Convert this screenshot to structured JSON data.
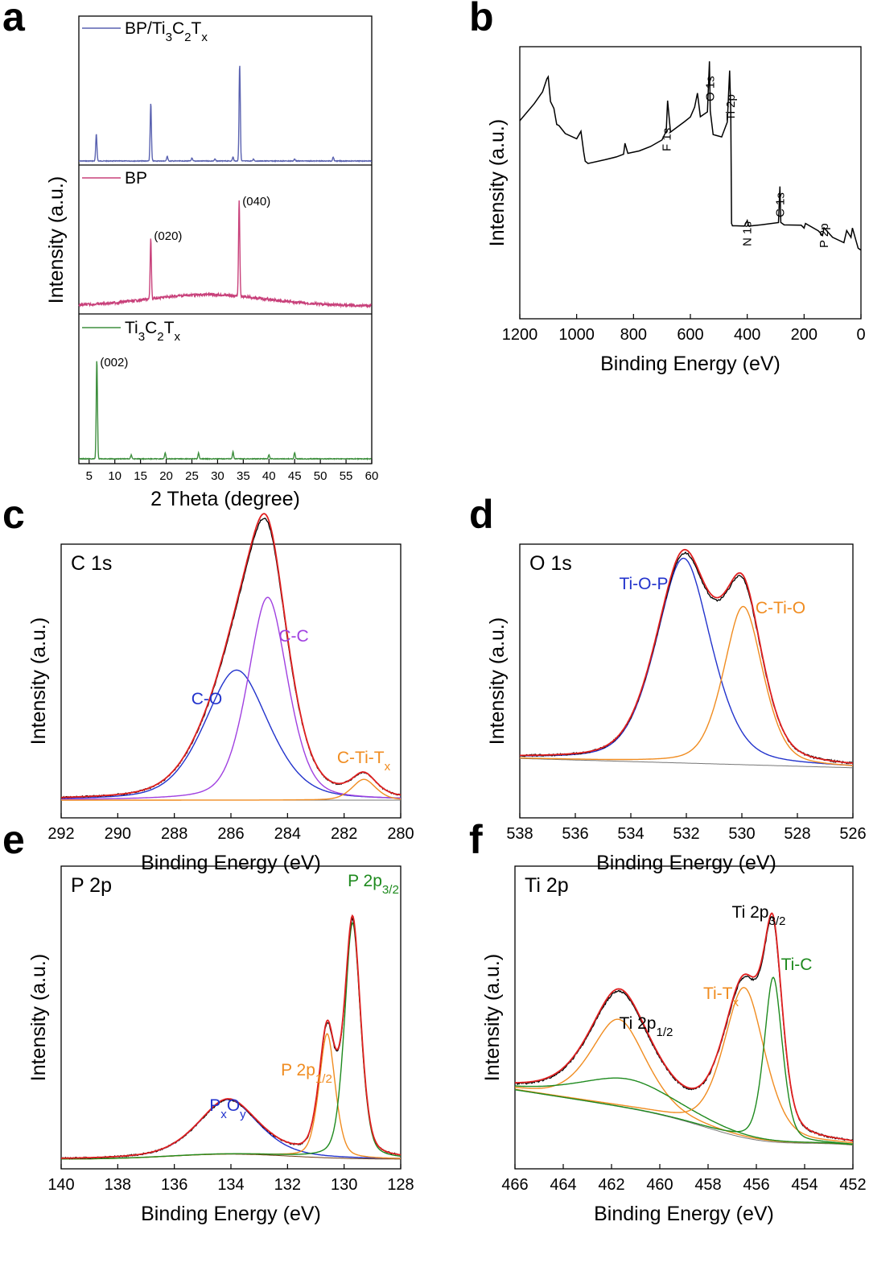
{
  "chart_data": [
    {
      "panel": "a",
      "type": "line",
      "xlabel": "2 Theta (degree)",
      "ylabel": "Intensity (a.u.)",
      "xlim": [
        3,
        60
      ],
      "xticks": [
        5,
        10,
        15,
        20,
        25,
        30,
        35,
        40,
        45,
        50,
        55,
        60
      ],
      "series": [
        {
          "name": "BP/Ti3C2Tx",
          "legend": {
            "main": "BP/Ti",
            "parts": [
              [
                "3",
                "sub"
              ],
              [
                "C",
                ""
              ],
              [
                "2",
                "sub"
              ],
              [
                "T",
                ""
              ],
              [
                "x",
                "sub"
              ]
            ]
          },
          "color": "#5a62b0",
          "peaks": [
            [
              6.4,
              0.28
            ],
            [
              17.0,
              0.6
            ],
            [
              20.2,
              0.05
            ],
            [
              25.0,
              0.03
            ],
            [
              29.5,
              0.02
            ],
            [
              33.0,
              0.04
            ],
            [
              34.3,
              1.0
            ],
            [
              37.0,
              0.02
            ],
            [
              45.0,
              0.02
            ],
            [
              52.5,
              0.04
            ]
          ],
          "baseline": "flat"
        },
        {
          "name": "BP",
          "legend": {
            "main": "BP",
            "parts": []
          },
          "color": "#c8407a",
          "peaks": [
            [
              17.0,
              0.62
            ],
            [
              34.2,
              1.0
            ]
          ],
          "baseline": "hump",
          "annotations": [
            {
              "text": "(020)",
              "x": 17.0
            },
            {
              "text": "(040)",
              "x": 34.2
            }
          ]
        },
        {
          "name": "Ti3C2Tx",
          "legend": {
            "main": "Ti",
            "parts": [
              [
                "3",
                "sub"
              ],
              [
                "C",
                ""
              ],
              [
                "2",
                "sub"
              ],
              [
                "T",
                ""
              ],
              [
                "x",
                "sub"
              ]
            ]
          },
          "color": "#3e8f3e",
          "peaks": [
            [
              6.5,
              1.0
            ],
            [
              13.2,
              0.04
            ],
            [
              19.8,
              0.06
            ],
            [
              26.3,
              0.06
            ],
            [
              33.0,
              0.07
            ],
            [
              40.0,
              0.04
            ],
            [
              45.0,
              0.06
            ]
          ],
          "baseline": "flat",
          "annotations": [
            {
              "text": "(002)",
              "x": 6.5
            }
          ]
        }
      ]
    },
    {
      "panel": "b",
      "type": "line",
      "xlabel": "Binding Energy (eV)",
      "ylabel": "Intensity (a.u.)",
      "xlim": [
        1200,
        0
      ],
      "xticks": [
        1200,
        1000,
        800,
        600,
        400,
        200,
        0
      ],
      "series": [
        {
          "name": "survey",
          "color": "#000000",
          "x": [
            1200,
            1150,
            1120,
            1105,
            1100,
            1092,
            1080,
            1070,
            1062,
            1040,
            1000,
            985,
            975,
            970,
            960,
            900,
            860,
            835,
            830,
            820,
            780,
            740,
            700,
            685,
            680,
            670,
            620,
            600,
            585,
            575,
            565,
            540,
            533,
            530,
            520,
            490,
            470,
            462,
            458,
            455,
            452,
            440,
            410,
            400,
            395,
            350,
            290,
            285,
            282,
            270,
            210,
            200,
            195,
            150,
            135,
            130,
            100,
            60,
            50,
            35,
            30,
            10,
            0
          ],
          "y": [
            0.78,
            0.85,
            0.9,
            0.95,
            0.96,
            0.86,
            0.83,
            0.77,
            0.76,
            0.73,
            0.71,
            0.74,
            0.66,
            0.62,
            0.61,
            0.63,
            0.64,
            0.65,
            0.69,
            0.65,
            0.66,
            0.68,
            0.71,
            0.74,
            0.86,
            0.74,
            0.78,
            0.8,
            0.84,
            0.89,
            0.8,
            0.82,
            1.02,
            0.82,
            0.73,
            0.72,
            0.78,
            0.98,
            0.82,
            0.38,
            0.37,
            0.37,
            0.37,
            0.39,
            0.37,
            0.37,
            0.38,
            0.52,
            0.38,
            0.37,
            0.37,
            0.36,
            0.38,
            0.35,
            0.33,
            0.36,
            0.32,
            0.3,
            0.35,
            0.32,
            0.36,
            0.28,
            0.27
          ]
        }
      ],
      "annotations": [
        {
          "text": "F 1s",
          "x": 683
        },
        {
          "text": "O 1s",
          "x": 531
        },
        {
          "text": "Ti 2p",
          "x": 459
        },
        {
          "text": "N 1s",
          "x": 400
        },
        {
          "text": "C 1s",
          "x": 284
        },
        {
          "text": "P 2p",
          "x": 130
        }
      ]
    },
    {
      "panel": "c",
      "type": "line",
      "title": "C 1s",
      "xlabel": "Binding Energy (eV)",
      "ylabel": "Intensity (a.u.)",
      "xlim": [
        292,
        280
      ],
      "xticks": [
        292,
        290,
        288,
        286,
        284,
        282,
        280
      ],
      "peaks": [
        {
          "name": "C-O",
          "center": 285.8,
          "height": 0.5,
          "width": 1.2,
          "color": "#2233cc"
        },
        {
          "name": "C-C",
          "center": 284.7,
          "height": 0.78,
          "width": 0.75,
          "color": "#a040e0"
        },
        {
          "name": "C-Ti-Tx",
          "center": 281.3,
          "height": 0.08,
          "width": 0.45,
          "color": "#f08c20"
        }
      ],
      "labels": [
        {
          "text": "C-O",
          "color": "#2233cc"
        },
        {
          "text": "C-C",
          "color": "#a040e0"
        },
        {
          "text": "C-Ti-T",
          "sub": "x",
          "color": "#f08c20"
        }
      ]
    },
    {
      "panel": "d",
      "type": "line",
      "title": "O 1s",
      "xlabel": "Binding Energy (eV)",
      "ylabel": "Intensity (a.u.)",
      "xlim": [
        538,
        526
      ],
      "xticks": [
        538,
        536,
        534,
        532,
        530,
        528,
        526
      ],
      "peaks": [
        {
          "name": "Ti-O-P",
          "center": 532.1,
          "height": 0.88,
          "width": 1.05,
          "color": "#2233cc"
        },
        {
          "name": "C-Ti-O",
          "center": 529.95,
          "height": 0.68,
          "width": 0.75,
          "color": "#f08c20"
        }
      ],
      "labels": [
        {
          "text": "Ti-O-P",
          "color": "#2233cc"
        },
        {
          "text": "C-Ti-O",
          "color": "#f08c20"
        }
      ]
    },
    {
      "panel": "e",
      "type": "line",
      "title": "P 2p",
      "xlabel": "Binding Energy (eV)",
      "ylabel": "Intensity (a.u.)",
      "xlim": [
        140,
        128
      ],
      "xticks": [
        140,
        138,
        136,
        134,
        132,
        130,
        128
      ],
      "peaks": [
        {
          "name": "PxOy",
          "center": 134.1,
          "height": 0.22,
          "width": 1.1,
          "color": "#2233cc"
        },
        {
          "name": "P 2p1/2",
          "center": 130.6,
          "height": 0.5,
          "width": 0.3,
          "color": "#f08c20"
        },
        {
          "name": "P 2p3/2",
          "center": 129.7,
          "height": 0.95,
          "width": 0.3,
          "color": "#1e8a1e"
        }
      ],
      "labels": [
        {
          "text": "P",
          "sub": "x",
          "text2": "O",
          "sub2": "y",
          "color": "#2233cc"
        },
        {
          "text": "P 2p",
          "sub": "1/2",
          "color": "#f08c20"
        },
        {
          "text": "P 2p",
          "sub": "3/2",
          "color": "#1e8a1e"
        }
      ]
    },
    {
      "panel": "f",
      "type": "line",
      "title": "Ti 2p",
      "xlabel": "Binding Energy (eV)",
      "ylabel": "Intensity (a.u.)",
      "xlim": [
        466,
        452
      ],
      "xticks": [
        466,
        464,
        462,
        460,
        458,
        456,
        454,
        452
      ],
      "peaks": [
        {
          "name": "Ti-Tx 2p1/2",
          "center": 461.7,
          "height": 0.36,
          "width": 1.2,
          "color": "#f08c20"
        },
        {
          "name": "Ti-C 2p1/2",
          "center": 461.3,
          "height": 0.12,
          "width": 2.2,
          "color": "#1e8a1e"
        },
        {
          "name": "Ti-Tx",
          "center": 456.5,
          "height": 0.62,
          "width": 0.9,
          "color": "#f08c20"
        },
        {
          "name": "Ti-C",
          "center": 455.3,
          "height": 0.68,
          "width": 0.4,
          "color": "#1e8a1e"
        }
      ],
      "labels": [
        {
          "text": "Ti 2p",
          "sub": "1/2",
          "color": "#000000"
        },
        {
          "text": "Ti 2p",
          "sub": "3/2",
          "color": "#000000"
        },
        {
          "text": "Ti-T",
          "sub": "x",
          "color": "#f08c20"
        },
        {
          "text": "Ti-C",
          "color": "#1e8a1e"
        }
      ]
    }
  ]
}
